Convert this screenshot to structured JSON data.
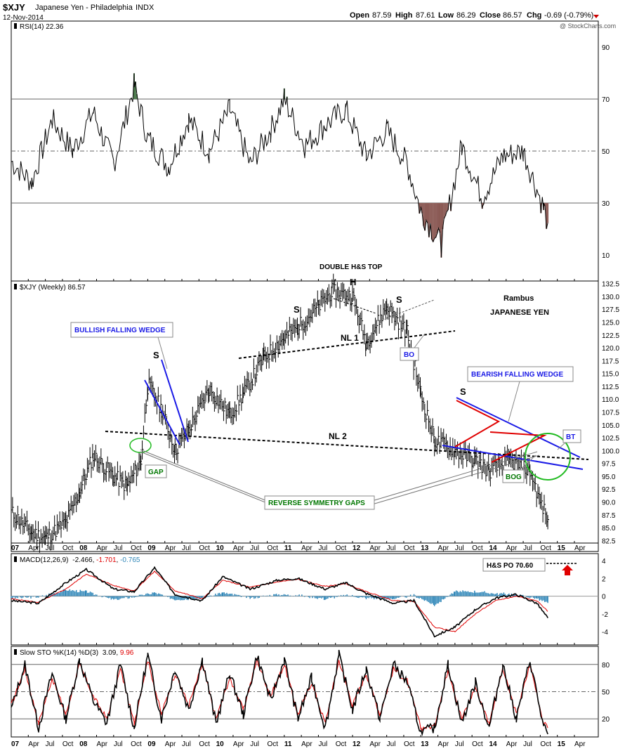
{
  "header": {
    "symbol": "$XJY",
    "name": "Japanese Yen - Philadelphia",
    "exchange": "INDX",
    "date": "12-Nov-2014",
    "open_label": "Open",
    "open": "87.59",
    "high_label": "High",
    "high": "87.61",
    "low_label": "Low",
    "low": "86.29",
    "close_label": "Close",
    "close": "86.57",
    "chg_label": "Chg",
    "chg": "-0.69 (-0.79%)",
    "copyright": "@ StockCharts.com"
  },
  "colors": {
    "price": "#000000",
    "rsi_fill_high": "#4d7a4d",
    "rsi_fill_low": "#8b5a55",
    "macd_signal": "#e00000",
    "macd_hist": "#2e86b8",
    "sto_d": "#e00000",
    "wedge_blue": "#1a1ae6",
    "triangle_red": "#e00000",
    "circle_green": "#22bb22",
    "gaps_green": "#007700",
    "header_red": "#cc0000",
    "arrow_red": "#e00000"
  },
  "x_axis": {
    "ticks": [
      "07",
      "Apr",
      "Jul",
      "Oct",
      "08",
      "Apr",
      "Jul",
      "Oct",
      "09",
      "Apr",
      "Jul",
      "Oct",
      "10",
      "Apr",
      "Jul",
      "Oct",
      "11",
      "Apr",
      "Jul",
      "Oct",
      "12",
      "Apr",
      "Jul",
      "Oct",
      "13",
      "Apr",
      "Jul",
      "Oct",
      "14",
      "Apr",
      "Jul",
      "Oct",
      "15",
      "Apr"
    ],
    "bold_ticks": [
      "07",
      "08",
      "09",
      "10",
      "11",
      "12",
      "13",
      "14",
      "15"
    ]
  },
  "chart_data": [
    {
      "type": "line",
      "panel": "rsi",
      "legend": "RSI(14) 22.36",
      "ylim": [
        0,
        100
      ],
      "yticks": [
        "90",
        "70",
        "50",
        "30",
        "10"
      ],
      "reference_lines": [
        70,
        50,
        30
      ],
      "x": [
        2007.0,
        2007.3,
        2007.6,
        2007.9,
        2008.2,
        2008.5,
        2008.8,
        2009.0,
        2009.3,
        2009.6,
        2009.9,
        2010.2,
        2010.5,
        2010.8,
        2011.0,
        2011.3,
        2011.6,
        2011.9,
        2012.2,
        2012.5,
        2012.8,
        2013.0,
        2013.3,
        2013.6,
        2013.9,
        2014.2,
        2014.5,
        2014.8,
        2014.86
      ],
      "values": [
        46,
        38,
        62,
        50,
        65,
        45,
        75,
        55,
        44,
        62,
        50,
        66,
        45,
        58,
        70,
        52,
        60,
        66,
        48,
        58,
        45,
        27,
        14,
        52,
        32,
        48,
        50,
        28,
        22.36
      ]
    },
    {
      "type": "bar",
      "panel": "price",
      "style": "ohlc",
      "legend": "$XJY (Weekly) 86.57",
      "ylim": [
        82,
        133
      ],
      "yticks": [
        "132.5",
        "130.0",
        "127.5",
        "125.0",
        "122.5",
        "120.0",
        "117.5",
        "115.0",
        "112.5",
        "110.0",
        "107.5",
        "105.0",
        "102.5",
        "100.0",
        "97.5",
        "95.0",
        "92.5",
        "90.0",
        "87.5",
        "85.0",
        "82.5"
      ],
      "x": [
        2007.0,
        2007.3,
        2007.5,
        2007.8,
        2008.0,
        2008.2,
        2008.5,
        2008.7,
        2008.9,
        2009.0,
        2009.2,
        2009.4,
        2009.6,
        2009.9,
        2010.2,
        2010.4,
        2010.7,
        2011.0,
        2011.2,
        2011.5,
        2011.7,
        2012.0,
        2012.2,
        2012.5,
        2012.8,
        2013.0,
        2013.2,
        2013.5,
        2013.8,
        2014.0,
        2014.3,
        2014.6,
        2014.75,
        2014.86
      ],
      "values": [
        88,
        84,
        83,
        86,
        92,
        99,
        95,
        93,
        98,
        113,
        108,
        100,
        104,
        112,
        107,
        111,
        118,
        122,
        124,
        128,
        131,
        130,
        121,
        128,
        123,
        111,
        102,
        100,
        98,
        96,
        98,
        96,
        90,
        86.57
      ]
    },
    {
      "type": "line",
      "panel": "macd",
      "legend_prefix": "MACD(12,26,9)",
      "legend_macd": "-2.466",
      "legend_signal": "-1.701",
      "legend_hist": "-0.765",
      "ylim": [
        -5.5,
        4.8
      ],
      "yticks": [
        "4",
        "2",
        "0",
        "-2",
        "-4"
      ],
      "x": [
        2007.0,
        2007.4,
        2007.8,
        2008.1,
        2008.5,
        2008.8,
        2009.1,
        2009.4,
        2009.8,
        2010.1,
        2010.5,
        2010.9,
        2011.2,
        2011.6,
        2011.9,
        2012.2,
        2012.6,
        2012.9,
        2013.2,
        2013.5,
        2013.8,
        2014.1,
        2014.4,
        2014.7,
        2014.86
      ],
      "series": [
        {
          "name": "MACD",
          "values": [
            -0.5,
            -0.8,
            1.5,
            3.0,
            0.8,
            0.5,
            3.2,
            0.2,
            -0.5,
            2.2,
            0.8,
            1.8,
            2.0,
            0.8,
            1.5,
            0.3,
            -0.8,
            -0.5,
            -4.5,
            -3.5,
            -1.5,
            -0.2,
            0.2,
            -0.8,
            -2.466
          ]
        },
        {
          "name": "Signal",
          "values": [
            -0.3,
            -0.7,
            0.8,
            2.5,
            1.2,
            0.6,
            2.8,
            0.6,
            -0.3,
            1.8,
            1.0,
            1.6,
            1.9,
            1.1,
            1.4,
            0.5,
            -0.5,
            -0.6,
            -3.5,
            -4.0,
            -2.0,
            -0.5,
            0.0,
            -0.5,
            -1.701
          ]
        }
      ],
      "annotation": "H&S PO 70.60"
    },
    {
      "type": "line",
      "panel": "stochastic",
      "legend_prefix": "Slow STO %K(14) %D(3)",
      "legend_k": "3.09",
      "legend_d": "9.96",
      "ylim": [
        0,
        100
      ],
      "yticks": [
        "80",
        "50",
        "20"
      ],
      "reference_lines": [
        80,
        50,
        20
      ],
      "x": [
        2007.0,
        2007.2,
        2007.4,
        2007.6,
        2007.8,
        2008.0,
        2008.2,
        2008.4,
        2008.6,
        2008.8,
        2009.0,
        2009.2,
        2009.4,
        2009.6,
        2009.8,
        2010.0,
        2010.2,
        2010.4,
        2010.6,
        2010.8,
        2011.0,
        2011.2,
        2011.4,
        2011.6,
        2011.8,
        2012.0,
        2012.2,
        2012.4,
        2012.6,
        2012.8,
        2013.0,
        2013.2,
        2013.4,
        2013.6,
        2013.8,
        2014.0,
        2014.2,
        2014.4,
        2014.6,
        2014.8,
        2014.86
      ],
      "series": [
        {
          "name": "%K",
          "values": [
            30,
            80,
            10,
            70,
            20,
            85,
            40,
            15,
            80,
            10,
            90,
            20,
            75,
            30,
            85,
            15,
            70,
            25,
            90,
            40,
            85,
            20,
            65,
            10,
            90,
            30,
            75,
            20,
            80,
            60,
            5,
            10,
            80,
            15,
            60,
            10,
            80,
            20,
            85,
            10,
            3.09
          ]
        },
        {
          "name": "%D",
          "values": [
            35,
            75,
            15,
            65,
            25,
            80,
            45,
            20,
            75,
            15,
            85,
            25,
            70,
            35,
            80,
            20,
            65,
            30,
            85,
            45,
            80,
            25,
            60,
            15,
            85,
            35,
            70,
            25,
            75,
            62,
            10,
            12,
            75,
            20,
            55,
            15,
            75,
            25,
            80,
            15,
            9.96
          ]
        }
      ]
    }
  ],
  "annotations": {
    "double_hs_top": "DOUBLE H&S TOP",
    "head": "H",
    "shoulder": "S",
    "nl1": "NL 1",
    "nl2": "NL 2",
    "bo": "BO",
    "bullish_wedge": "BULLISH FALLING WEDGE",
    "bearish_wedge": "BEARISH FALLING WEDGE",
    "gap": "GAP",
    "bog": "BOG",
    "bt": "BT",
    "reverse_gaps": "REVERSE SYMMETRY GAPS",
    "rambus": "Rambus",
    "japanese_yen": "JAPANESE YEN"
  }
}
